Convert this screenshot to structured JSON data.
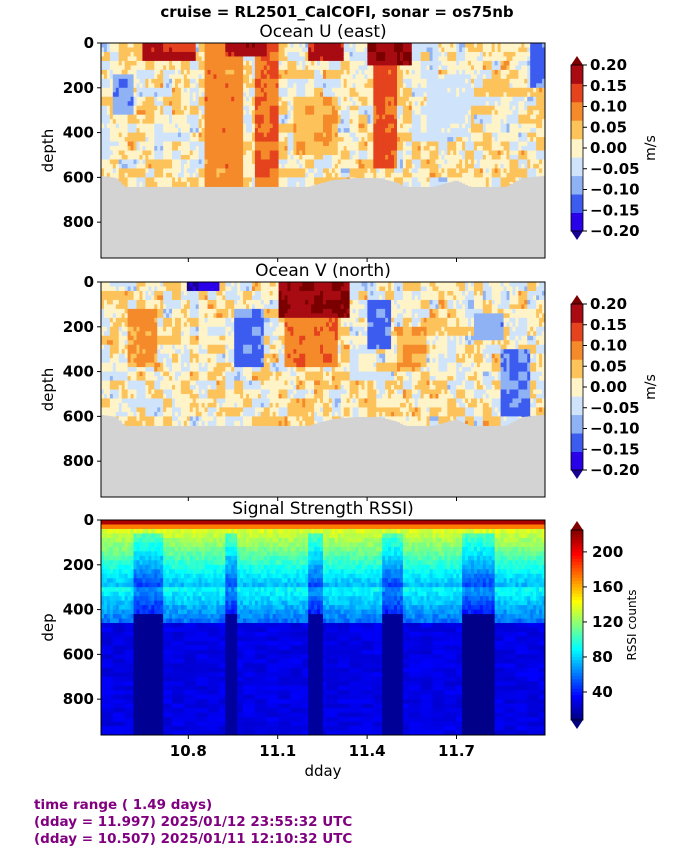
{
  "suptitle": "cruise = RL2501_CalCOFI,  sonar = os75nb",
  "footer": {
    "line1": "time range ( 1.49 days)",
    "line2": "(dday = 11.997) 2025/01/12 23:55:32 UTC",
    "line3": "(dday = 10.507) 2025/01/11 12:10:32 UTC"
  },
  "x_axis": {
    "label": "dday",
    "range": [
      10.507,
      11.997
    ],
    "ticks": [
      10.8,
      11.1,
      11.4,
      11.7
    ],
    "tick_labels": [
      "10.8",
      "11.1",
      "11.4",
      "11.7"
    ]
  },
  "colors": {
    "no_data": "#d3d3d3",
    "footer_text": "#800080",
    "velocity_levels": [
      "#2a00e8",
      "#3c5cf0",
      "#8fb2f5",
      "#cfe4fb",
      "#fff3c8",
      "#fdc35b",
      "#f58a2a",
      "#e4431e",
      "#a80b12"
    ],
    "velocity_under": "#1a0090",
    "velocity_over": "#7a0000"
  },
  "chart_data": [
    {
      "type": "heatmap",
      "title": "Ocean U (east)",
      "ylabel": "depth",
      "ylim": [
        960,
        0
      ],
      "yticks": [
        0,
        200,
        400,
        600,
        800
      ],
      "ytick_labels": [
        "0",
        "200",
        "400",
        "600",
        "800"
      ],
      "colorbar": {
        "label": "m/s",
        "range": [
          -0.2,
          0.2
        ],
        "ticks": [
          "0.20",
          "0.15",
          "0.10",
          "0.05",
          "0.00",
          "−0.05",
          "−0.10",
          "−0.15",
          "−0.20"
        ],
        "extend": "both"
      },
      "bottom_depth": [
        [
          10.507,
          590
        ],
        [
          10.56,
          600
        ],
        [
          10.61,
          670
        ],
        [
          10.68,
          660
        ],
        [
          10.75,
          650
        ],
        [
          10.82,
          670
        ],
        [
          10.9,
          690
        ],
        [
          10.97,
          670
        ],
        [
          11.05,
          680
        ],
        [
          11.12,
          660
        ],
        [
          11.2,
          640
        ],
        [
          11.28,
          610
        ],
        [
          11.36,
          600
        ],
        [
          11.44,
          600
        ],
        [
          11.5,
          620
        ],
        [
          11.56,
          660
        ],
        [
          11.62,
          640
        ],
        [
          11.7,
          610
        ],
        [
          11.78,
          660
        ],
        [
          11.85,
          650
        ],
        [
          11.92,
          600
        ],
        [
          11.997,
          590
        ]
      ],
      "features": [
        {
          "dday": [
            10.65,
            10.82
          ],
          "depth": [
            0,
            80
          ],
          "u": 0.16
        },
        {
          "dday": [
            10.92,
            11.06
          ],
          "depth": [
            0,
            60
          ],
          "u": 0.2
        },
        {
          "dday": [
            11.2,
            11.32
          ],
          "depth": [
            0,
            70
          ],
          "u": 0.17
        },
        {
          "dday": [
            11.4,
            11.55
          ],
          "depth": [
            0,
            90
          ],
          "u": 0.2
        },
        {
          "dday": [
            10.85,
            10.98
          ],
          "depth": [
            0,
            650
          ],
          "u": 0.09
        },
        {
          "dday": [
            11.02,
            11.1
          ],
          "depth": [
            0,
            640
          ],
          "u": 0.11
        },
        {
          "dday": [
            11.42,
            11.5
          ],
          "depth": [
            80,
            560
          ],
          "u": 0.12
        },
        {
          "dday": [
            10.55,
            10.62
          ],
          "depth": [
            150,
            320
          ],
          "u": -0.1
        },
        {
          "dday": [
            11.95,
            11.997
          ],
          "depth": [
            0,
            200
          ],
          "u": -0.13
        },
        {
          "dday": [
            11.6,
            11.75
          ],
          "depth": [
            150,
            420
          ],
          "u": -0.04
        },
        {
          "dday": [
            11.15,
            11.3
          ],
          "depth": [
            250,
            500
          ],
          "u": 0.06
        }
      ]
    },
    {
      "type": "heatmap",
      "title": "Ocean V (north)",
      "ylabel": "depth",
      "ylim": [
        960,
        0
      ],
      "yticks": [
        0,
        200,
        400,
        600,
        800
      ],
      "ytick_labels": [
        "0",
        "200",
        "400",
        "600",
        "800"
      ],
      "colorbar": {
        "label": "m/s",
        "range": [
          -0.2,
          0.2
        ],
        "ticks": [
          "0.20",
          "0.15",
          "0.10",
          "0.05",
          "0.00",
          "−0.05",
          "−0.10",
          "−0.15",
          "−0.20"
        ],
        "extend": "both"
      },
      "bottom_depth": [
        [
          10.507,
          590
        ],
        [
          10.56,
          600
        ],
        [
          10.61,
          670
        ],
        [
          10.68,
          660
        ],
        [
          10.75,
          650
        ],
        [
          10.82,
          670
        ],
        [
          10.9,
          690
        ],
        [
          10.97,
          670
        ],
        [
          11.05,
          680
        ],
        [
          11.12,
          660
        ],
        [
          11.2,
          640
        ],
        [
          11.28,
          610
        ],
        [
          11.36,
          600
        ],
        [
          11.44,
          600
        ],
        [
          11.5,
          620
        ],
        [
          11.56,
          660
        ],
        [
          11.62,
          640
        ],
        [
          11.7,
          610
        ],
        [
          11.78,
          660
        ],
        [
          11.85,
          650
        ],
        [
          11.92,
          600
        ],
        [
          11.997,
          590
        ]
      ],
      "features": [
        {
          "dday": [
            11.1,
            11.34
          ],
          "depth": [
            0,
            150
          ],
          "v": 0.2
        },
        {
          "dday": [
            11.12,
            11.3
          ],
          "depth": [
            150,
            380
          ],
          "v": 0.1
        },
        {
          "dday": [
            10.8,
            10.9
          ],
          "depth": [
            0,
            40
          ],
          "v": -0.2
        },
        {
          "dday": [
            10.6,
            10.7
          ],
          "depth": [
            120,
            380
          ],
          "v": 0.08
        },
        {
          "dday": [
            11.5,
            11.6
          ],
          "depth": [
            200,
            380
          ],
          "v": 0.06
        },
        {
          "dday": [
            10.95,
            11.05
          ],
          "depth": [
            120,
            380
          ],
          "v": -0.12
        },
        {
          "dday": [
            11.4,
            11.48
          ],
          "depth": [
            80,
            300
          ],
          "v": -0.12
        },
        {
          "dday": [
            11.85,
            11.95
          ],
          "depth": [
            300,
            600
          ],
          "v": -0.12
        },
        {
          "dday": [
            11.76,
            11.86
          ],
          "depth": [
            150,
            250
          ],
          "v": -0.1
        }
      ]
    },
    {
      "type": "heatmap",
      "title": "Signal Strength RSSI)",
      "ylabel": "dep",
      "ylim": [
        960,
        0
      ],
      "yticks": [
        0,
        200,
        400,
        600,
        800
      ],
      "ytick_labels": [
        "0",
        "200",
        "400",
        "600",
        "800"
      ],
      "colorbar": {
        "label": "RSSI counts",
        "range": [
          8,
          225
        ],
        "ticks": [
          "200",
          "160",
          "120",
          "80",
          "40"
        ],
        "tick_values": [
          200,
          160,
          120,
          80,
          40
        ],
        "extend": "both"
      },
      "surface_rssi": 215,
      "deep_rssi": 30,
      "dark_bands": [
        {
          "dday": [
            10.62,
            10.72
          ],
          "rssi_deep": 12
        },
        {
          "dday": [
            10.92,
            10.96
          ],
          "rssi_deep": 14
        },
        {
          "dday": [
            11.2,
            11.25
          ],
          "rssi_deep": 14
        },
        {
          "dday": [
            11.45,
            11.52
          ],
          "rssi_deep": 13
        },
        {
          "dday": [
            11.72,
            11.83
          ],
          "rssi_deep": 10
        }
      ]
    }
  ]
}
